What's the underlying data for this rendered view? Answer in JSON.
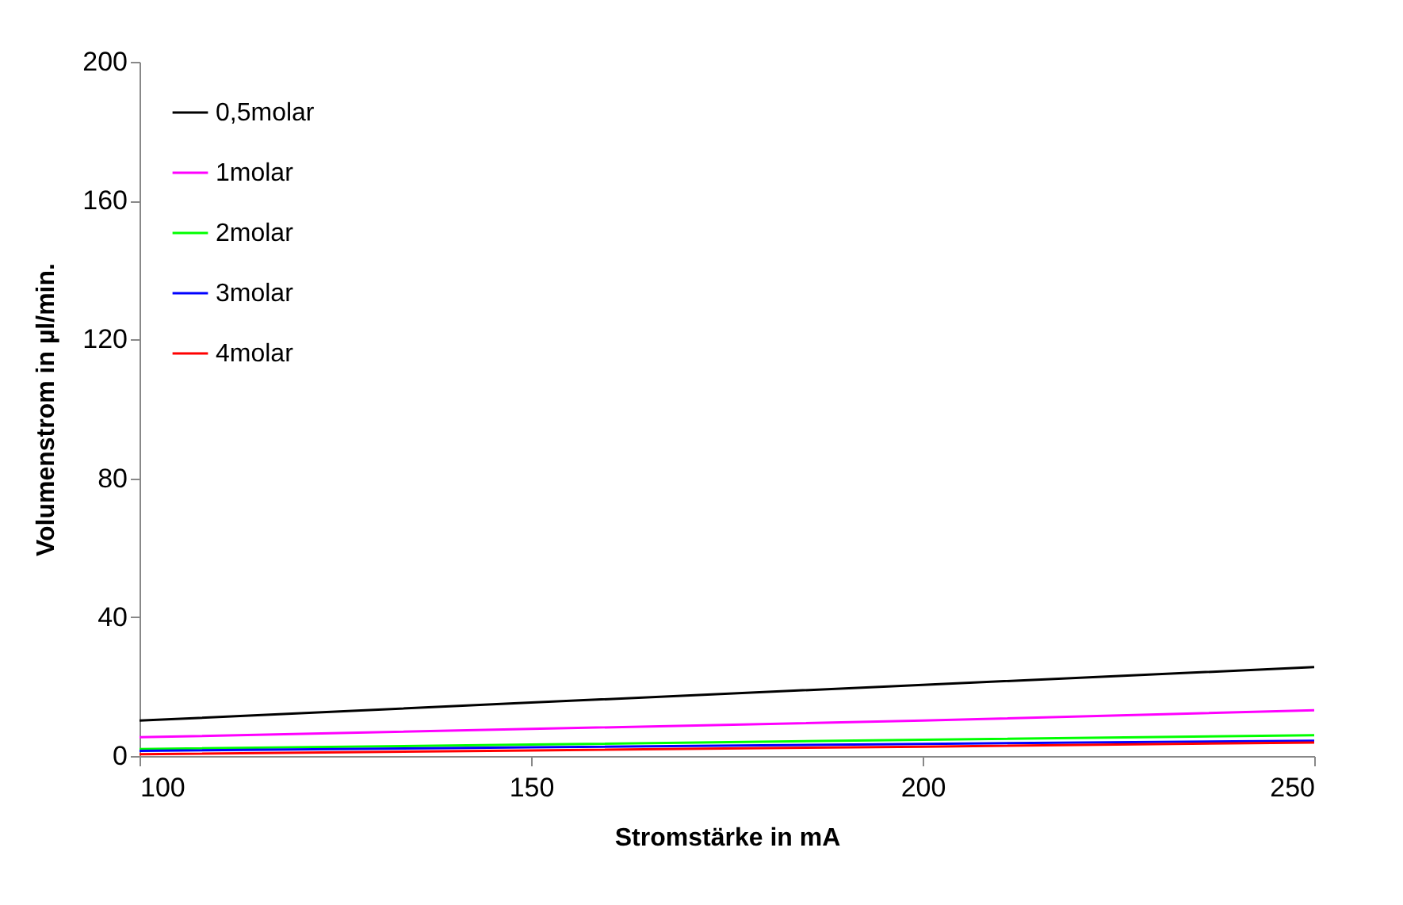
{
  "chart_data": {
    "type": "line",
    "xlabel": "Stromstärke in mA",
    "ylabel": "Volumenstrom in µl/min.",
    "x": [
      100,
      150,
      200,
      250
    ],
    "series": [
      {
        "name": "0,5molar",
        "color": "#000000",
        "values": [
          10.2,
          15.4,
          20.5,
          25.6
        ]
      },
      {
        "name": "1molar",
        "color": "#ff00ff",
        "values": [
          5.4,
          7.8,
          10.2,
          13.2
        ]
      },
      {
        "name": "2molar",
        "color": "#00ff00",
        "values": [
          2.0,
          3.3,
          4.7,
          6.0
        ]
      },
      {
        "name": "3molar",
        "color": "#0000ff",
        "values": [
          1.5,
          2.5,
          3.5,
          4.4
        ]
      },
      {
        "name": "4molar",
        "color": "#ff0000",
        "values": [
          0.5,
          1.6,
          2.7,
          3.9
        ]
      }
    ],
    "xlim": [
      100,
      250
    ],
    "xticks": [
      100,
      150,
      200,
      250
    ],
    "ylim": [
      0,
      200
    ],
    "yticks": [
      0,
      40,
      80,
      120,
      160,
      200
    ],
    "grid": false,
    "legend": "top left",
    "marker": "none",
    "line_style": "solid"
  }
}
